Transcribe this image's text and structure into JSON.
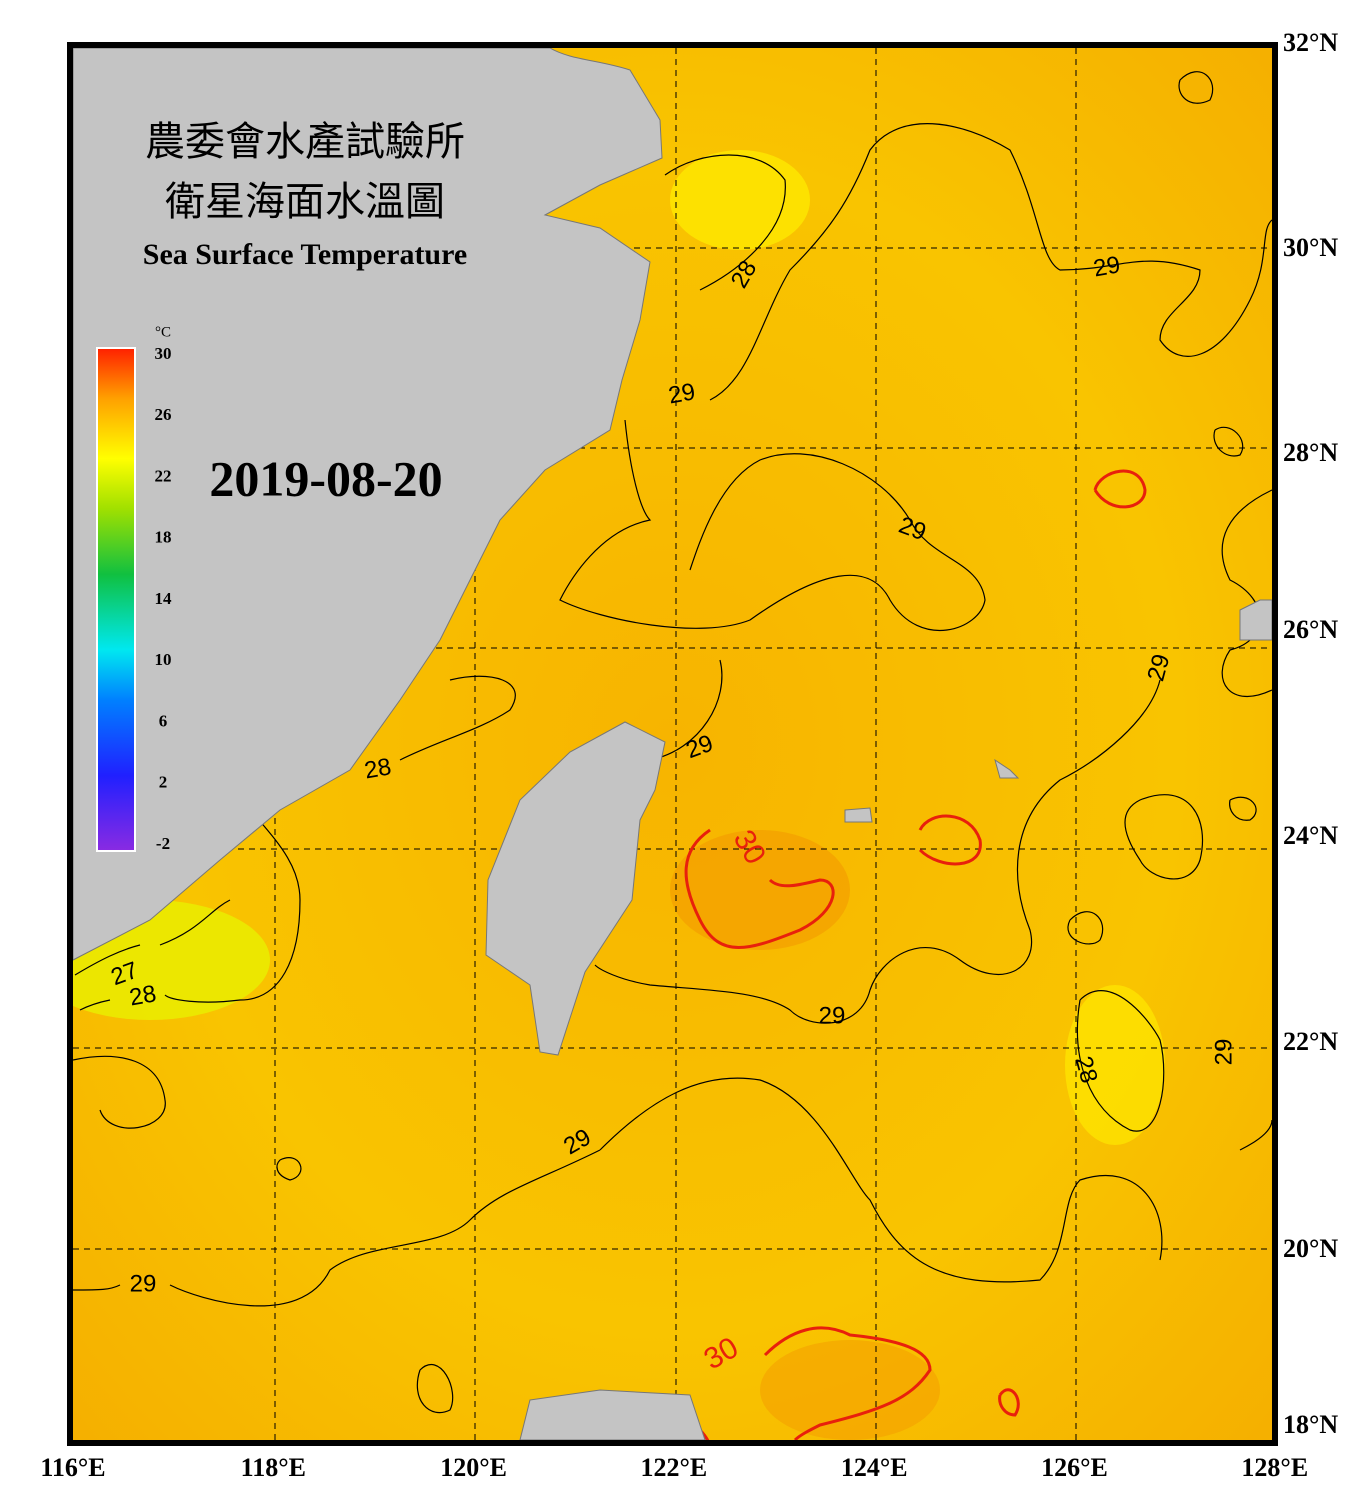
{
  "title": {
    "line1": "農委會水產試驗所",
    "line2": "衛星海面水溫圖",
    "line3": "Sea Surface Temperature"
  },
  "date": "2019-08-20",
  "colorbar": {
    "unit": "°C",
    "range": [
      -2,
      30
    ],
    "ticks": [
      30,
      26,
      22,
      18,
      14,
      10,
      6,
      2,
      -2
    ]
  },
  "lon_labels": [
    "116°E",
    "118°E",
    "120°E",
    "122°E",
    "124°E",
    "126°E",
    "128°E"
  ],
  "lat_labels": [
    "32°N",
    "30°N",
    "28°N",
    "26°N",
    "24°N",
    "22°N",
    "20°N",
    "18°N"
  ],
  "contour_labels": [
    "28",
    "29",
    "29",
    "29",
    "28",
    "29",
    "29",
    "30",
    "29",
    "28",
    "29",
    "27",
    "28",
    "29",
    "29",
    "30"
  ]
}
